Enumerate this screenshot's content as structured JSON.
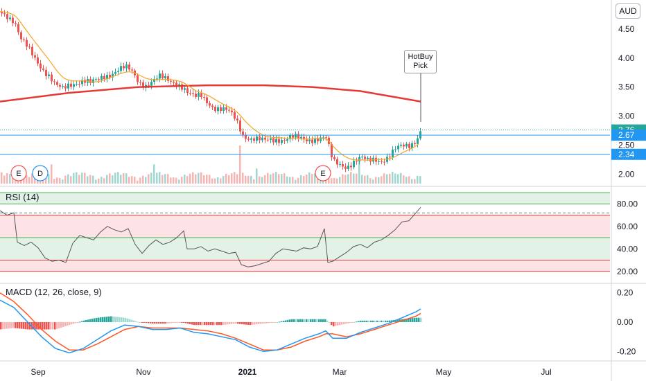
{
  "currency": "AUD",
  "callout": {
    "line1": "HotBuy",
    "line2": "Pick"
  },
  "rsi_title": "RSI (14)",
  "macd_title": "MACD (12, 26, close, 9)",
  "event_badges": [
    "E",
    "D",
    "E"
  ],
  "colors": {
    "up": "#26a69a",
    "down": "#ef5350",
    "sma200": "#e53935",
    "ema": "#f5a623",
    "level_line": "#2196f3",
    "rsi_line": "#555555",
    "macd_line": "#2196f3",
    "signal_line": "#ff5722",
    "band_green": "#e3f2e7",
    "band_red": "#fde2e6"
  },
  "chart_data": [
    {
      "type": "candlestick",
      "title": "",
      "x_ticks": [
        "Sep",
        "Nov",
        "2021",
        "Mar",
        "May",
        "Jul"
      ],
      "y_ticks": [
        "4.50",
        "4.00",
        "3.50",
        "3.00",
        "2.50",
        "2.00"
      ],
      "ylim": [
        1.8,
        5.0
      ],
      "price_tags": [
        "2.76",
        "2.67",
        "2.34"
      ],
      "horizontal_levels": [
        2.67,
        2.34
      ],
      "last_price": 2.76,
      "close_series": [
        [
          0,
          4.8
        ],
        [
          10,
          4.75
        ],
        [
          20,
          4.65
        ],
        [
          30,
          4.3
        ],
        [
          40,
          4.15
        ],
        [
          50,
          4.0
        ],
        [
          60,
          3.85
        ],
        [
          70,
          3.7
        ],
        [
          80,
          3.5
        ],
        [
          90,
          3.45
        ],
        [
          100,
          3.55
        ],
        [
          110,
          3.6
        ],
        [
          120,
          3.62
        ],
        [
          130,
          3.55
        ],
        [
          140,
          3.6
        ],
        [
          150,
          3.7
        ],
        [
          160,
          3.75
        ],
        [
          170,
          3.8
        ],
        [
          180,
          3.82
        ],
        [
          190,
          3.75
        ],
        [
          200,
          3.6
        ],
        [
          210,
          3.55
        ],
        [
          220,
          3.6
        ],
        [
          230,
          3.65
        ],
        [
          240,
          3.62
        ],
        [
          250,
          3.6
        ],
        [
          260,
          3.55
        ],
        [
          270,
          3.4
        ],
        [
          280,
          3.3
        ],
        [
          290,
          3.35
        ],
        [
          300,
          3.25
        ],
        [
          310,
          3.15
        ],
        [
          320,
          3.1
        ],
        [
          330,
          3.05
        ],
        [
          340,
          2.95
        ],
        [
          350,
          2.7
        ],
        [
          360,
          2.62
        ],
        [
          370,
          2.58
        ],
        [
          380,
          2.55
        ],
        [
          390,
          2.6
        ],
        [
          400,
          2.62
        ],
        [
          410,
          2.6
        ],
        [
          420,
          2.62
        ],
        [
          430,
          2.6
        ],
        [
          440,
          2.6
        ],
        [
          450,
          2.62
        ],
        [
          460,
          2.62
        ],
        [
          470,
          2.6
        ],
        [
          480,
          2.2
        ],
        [
          490,
          2.18
        ],
        [
          500,
          2.15
        ],
        [
          510,
          2.2
        ],
        [
          520,
          2.25
        ],
        [
          530,
          2.22
        ],
        [
          540,
          2.28
        ],
        [
          550,
          2.25
        ],
        [
          560,
          2.28
        ],
        [
          570,
          2.4
        ],
        [
          580,
          2.48
        ],
        [
          590,
          2.52
        ],
        [
          600,
          2.6
        ],
        [
          607,
          2.76
        ]
      ],
      "sma200": [
        [
          0,
          3.25
        ],
        [
          100,
          3.4
        ],
        [
          200,
          3.5
        ],
        [
          300,
          3.53
        ],
        [
          380,
          3.53
        ],
        [
          450,
          3.5
        ],
        [
          520,
          3.43
        ],
        [
          607,
          3.25
        ]
      ]
    },
    {
      "type": "line",
      "title": "RSI (14)",
      "y_ticks": [
        "80.00",
        "60.00",
        "40.00",
        "20.00"
      ],
      "ylim": [
        10,
        95
      ],
      "bands": [
        [
          80,
          90
        ],
        [
          50,
          70
        ],
        [
          30,
          50
        ],
        [
          20,
          30
        ]
      ],
      "values": [
        [
          0,
          74
        ],
        [
          10,
          70
        ],
        [
          20,
          72
        ],
        [
          25,
          46
        ],
        [
          35,
          43
        ],
        [
          45,
          46
        ],
        [
          55,
          41
        ],
        [
          65,
          32
        ],
        [
          75,
          29
        ],
        [
          85,
          30
        ],
        [
          95,
          28
        ],
        [
          105,
          45
        ],
        [
          115,
          52
        ],
        [
          125,
          50
        ],
        [
          135,
          48
        ],
        [
          145,
          55
        ],
        [
          155,
          60
        ],
        [
          165,
          57
        ],
        [
          175,
          55
        ],
        [
          185,
          58
        ],
        [
          195,
          44
        ],
        [
          205,
          36
        ],
        [
          215,
          43
        ],
        [
          225,
          48
        ],
        [
          235,
          44
        ],
        [
          245,
          46
        ],
        [
          255,
          50
        ],
        [
          265,
          56
        ],
        [
          270,
          40
        ],
        [
          280,
          40
        ],
        [
          290,
          42
        ],
        [
          300,
          38
        ],
        [
          310,
          40
        ],
        [
          320,
          38
        ],
        [
          330,
          36
        ],
        [
          340,
          37
        ],
        [
          348,
          26
        ],
        [
          358,
          24
        ],
        [
          368,
          25
        ],
        [
          378,
          27
        ],
        [
          388,
          29
        ],
        [
          398,
          36
        ],
        [
          408,
          40
        ],
        [
          418,
          39
        ],
        [
          428,
          38
        ],
        [
          438,
          41
        ],
        [
          448,
          40
        ],
        [
          458,
          42
        ],
        [
          468,
          58
        ],
        [
          473,
          28
        ],
        [
          480,
          29
        ],
        [
          490,
          33
        ],
        [
          500,
          37
        ],
        [
          510,
          42
        ],
        [
          520,
          44
        ],
        [
          530,
          41
        ],
        [
          540,
          46
        ],
        [
          550,
          48
        ],
        [
          560,
          52
        ],
        [
          570,
          57
        ],
        [
          580,
          64
        ],
        [
          590,
          65
        ],
        [
          600,
          72
        ],
        [
          607,
          77
        ]
      ]
    },
    {
      "type": "bar",
      "title": "MACD (12, 26, close, 9)",
      "y_ticks": [
        "0.20",
        "0.00",
        "-0.20"
      ],
      "ylim": [
        -0.26,
        0.26
      ],
      "macd": [
        [
          0,
          0.15
        ],
        [
          20,
          0.1
        ],
        [
          40,
          0.0
        ],
        [
          60,
          -0.1
        ],
        [
          80,
          -0.18
        ],
        [
          100,
          -0.21
        ],
        [
          120,
          -0.18
        ],
        [
          140,
          -0.12
        ],
        [
          160,
          -0.06
        ],
        [
          180,
          -0.02
        ],
        [
          200,
          -0.03
        ],
        [
          220,
          -0.05
        ],
        [
          240,
          -0.05
        ],
        [
          260,
          -0.04
        ],
        [
          280,
          -0.07
        ],
        [
          300,
          -0.08
        ],
        [
          320,
          -0.1
        ],
        [
          340,
          -0.12
        ],
        [
          360,
          -0.17
        ],
        [
          380,
          -0.2
        ],
        [
          400,
          -0.19
        ],
        [
          420,
          -0.15
        ],
        [
          440,
          -0.11
        ],
        [
          460,
          -0.08
        ],
        [
          470,
          -0.06
        ],
        [
          480,
          -0.11
        ],
        [
          500,
          -0.11
        ],
        [
          520,
          -0.07
        ],
        [
          540,
          -0.04
        ],
        [
          560,
          -0.01
        ],
        [
          580,
          0.03
        ],
        [
          600,
          0.07
        ],
        [
          607,
          0.09
        ]
      ],
      "signal": [
        [
          0,
          0.2
        ],
        [
          20,
          0.14
        ],
        [
          40,
          0.05
        ],
        [
          60,
          -0.05
        ],
        [
          80,
          -0.13
        ],
        [
          100,
          -0.19
        ],
        [
          120,
          -0.19
        ],
        [
          140,
          -0.15
        ],
        [
          160,
          -0.1
        ],
        [
          180,
          -0.05
        ],
        [
          200,
          -0.03
        ],
        [
          220,
          -0.04
        ],
        [
          240,
          -0.04
        ],
        [
          260,
          -0.04
        ],
        [
          280,
          -0.05
        ],
        [
          300,
          -0.06
        ],
        [
          320,
          -0.08
        ],
        [
          340,
          -0.11
        ],
        [
          360,
          -0.15
        ],
        [
          380,
          -0.19
        ],
        [
          400,
          -0.19
        ],
        [
          420,
          -0.17
        ],
        [
          440,
          -0.13
        ],
        [
          460,
          -0.1
        ],
        [
          470,
          -0.08
        ],
        [
          480,
          -0.08
        ],
        [
          500,
          -0.1
        ],
        [
          520,
          -0.08
        ],
        [
          540,
          -0.05
        ],
        [
          560,
          -0.02
        ],
        [
          580,
          0.01
        ],
        [
          600,
          0.04
        ],
        [
          607,
          0.06
        ]
      ]
    }
  ]
}
